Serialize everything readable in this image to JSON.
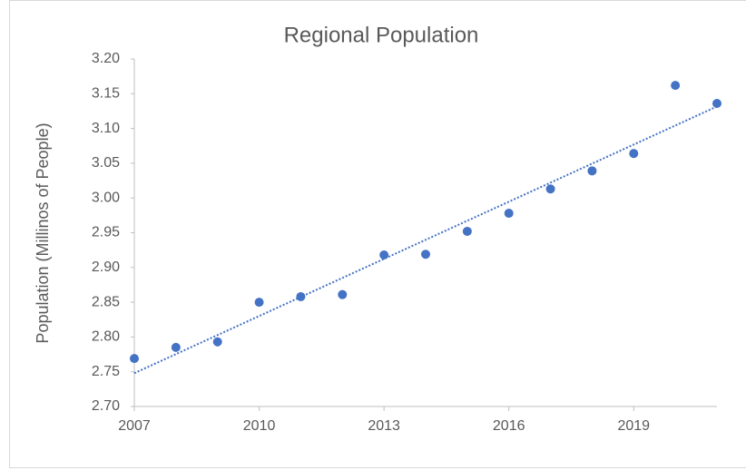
{
  "chart_data": {
    "type": "scatter",
    "title": "Regional Population",
    "y_label": "Population (Millinos of People)",
    "x": [
      2007,
      2008,
      2009,
      2010,
      2011,
      2012,
      2013,
      2014,
      2015,
      2016,
      2017,
      2018,
      2019,
      2020,
      2021
    ],
    "series": [
      {
        "name": "Population",
        "color": "#4472c4",
        "values": [
          2.769,
          2.785,
          2.793,
          2.85,
          2.858,
          2.861,
          2.918,
          2.919,
          2.952,
          2.978,
          3.013,
          3.039,
          3.064,
          3.162,
          3.136
        ]
      }
    ],
    "trendline": "linear",
    "xlim": [
      2007,
      2021
    ],
    "xticks": [
      2007,
      2010,
      2013,
      2016,
      2019
    ],
    "ylim": [
      2.7,
      3.2
    ],
    "yticks": [
      {
        "value": 2.7,
        "label": "2.70"
      },
      {
        "value": 2.75,
        "label": "2.75"
      },
      {
        "value": 2.8,
        "label": "2.80"
      },
      {
        "value": 2.85,
        "label": "2.85"
      },
      {
        "value": 2.9,
        "label": "2.90"
      },
      {
        "value": 2.95,
        "label": "2.95"
      },
      {
        "value": 3.0,
        "label": "3.00"
      },
      {
        "value": 3.05,
        "label": "3.05"
      },
      {
        "value": 3.1,
        "label": "3.10"
      },
      {
        "value": 3.15,
        "label": "3.15"
      },
      {
        "value": 3.2,
        "label": "3.20"
      }
    ],
    "grid": false
  }
}
